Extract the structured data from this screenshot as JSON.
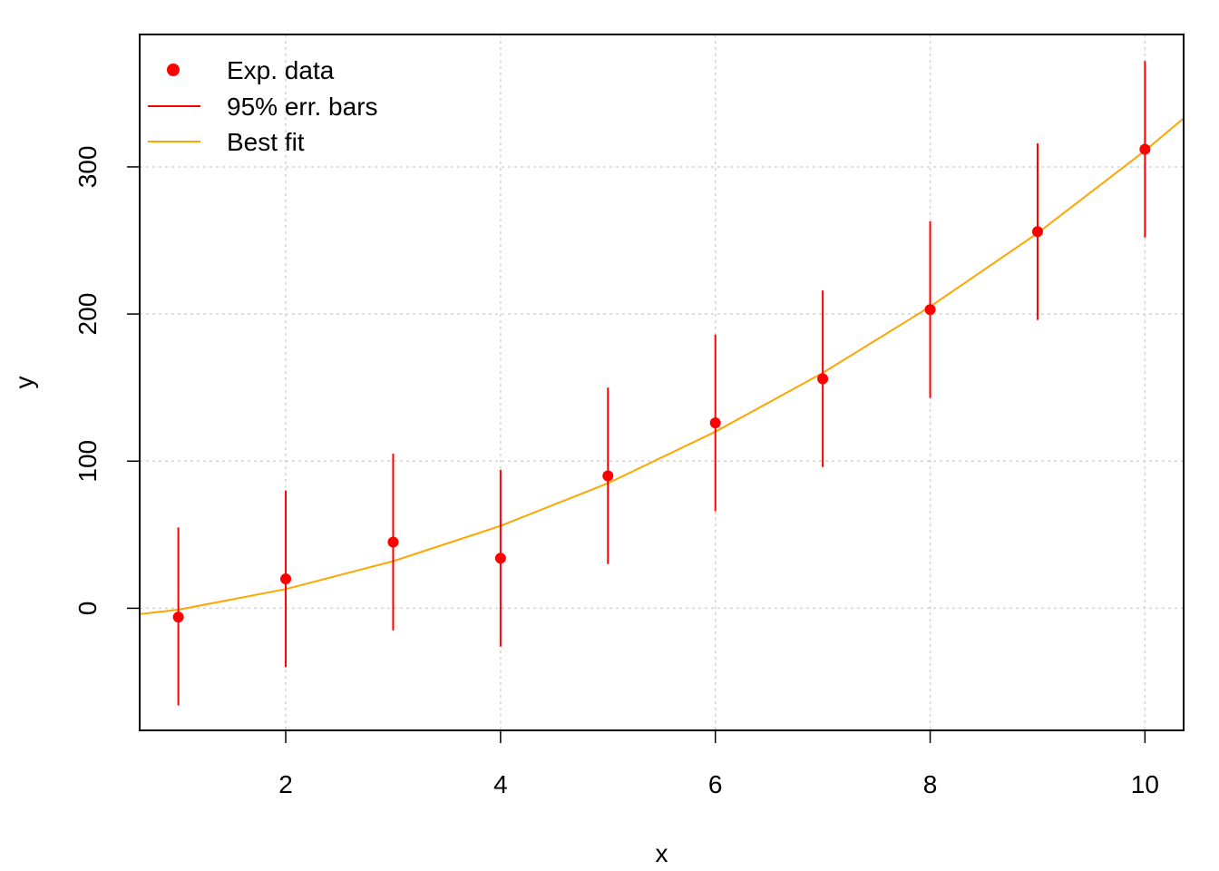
{
  "chart_data": {
    "type": "scatter",
    "title": "",
    "xlabel": "x",
    "ylabel": "y",
    "xlim": [
      0.64,
      10.36
    ],
    "ylim": [
      -83,
      390
    ],
    "grid": true,
    "x_ticks": [
      2,
      4,
      6,
      8,
      10
    ],
    "y_ticks": [
      0,
      100,
      200,
      300
    ],
    "legend_position": "top-left",
    "legend": [
      {
        "label": "Exp. data",
        "kind": "point",
        "color": "#ff0000"
      },
      {
        "label": "95% err. bars",
        "kind": "line",
        "color": "#ff0000"
      },
      {
        "label": "Best fit",
        "kind": "line",
        "color": "#ffa500"
      }
    ],
    "series": [
      {
        "name": "Exp. data",
        "color": "#ff0000",
        "x": [
          1,
          2,
          3,
          4,
          5,
          6,
          7,
          8,
          9,
          10
        ],
        "y": [
          -6,
          20,
          45,
          34,
          90,
          126,
          156,
          203,
          256,
          312
        ],
        "y_err_low": [
          -66,
          -40,
          -15,
          -26,
          30,
          66,
          96,
          143,
          196,
          252
        ],
        "y_err_high": [
          55,
          80,
          105,
          94,
          150,
          186,
          216,
          263,
          316,
          372
        ]
      },
      {
        "name": "Best fit",
        "color": "#ffa500",
        "x": [
          0.64,
          1,
          2,
          3,
          4,
          5,
          6,
          7,
          8,
          9,
          10,
          10.36
        ],
        "y": [
          -4,
          -1,
          13,
          32,
          56,
          85,
          120,
          160,
          205,
          255,
          311,
          333
        ]
      }
    ]
  }
}
